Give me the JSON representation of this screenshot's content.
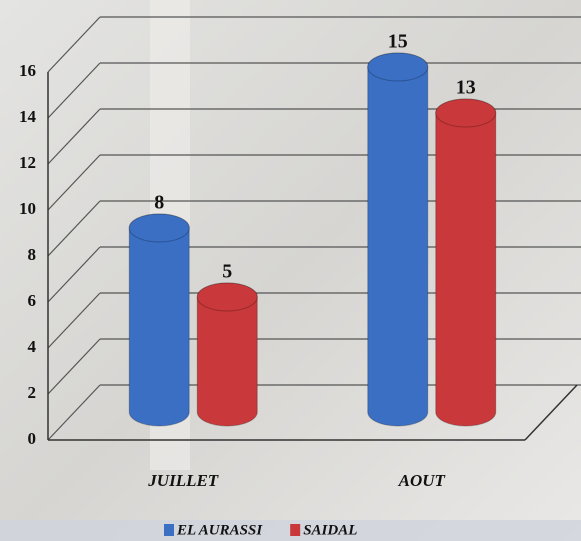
{
  "chart_data": {
    "type": "bar",
    "categories": [
      "JUILLET",
      "AOUT"
    ],
    "series": [
      {
        "name": "EL AURASSI",
        "color": "#3a6fc4",
        "values": [
          8,
          15
        ]
      },
      {
        "name": "SAIDAL",
        "color": "#c9383a",
        "values": [
          5,
          13
        ]
      }
    ],
    "ylim": [
      0,
      16
    ],
    "yticks": [
      0,
      2,
      4,
      6,
      8,
      10,
      12,
      14,
      16
    ],
    "grid": true,
    "legend": "bottom"
  }
}
